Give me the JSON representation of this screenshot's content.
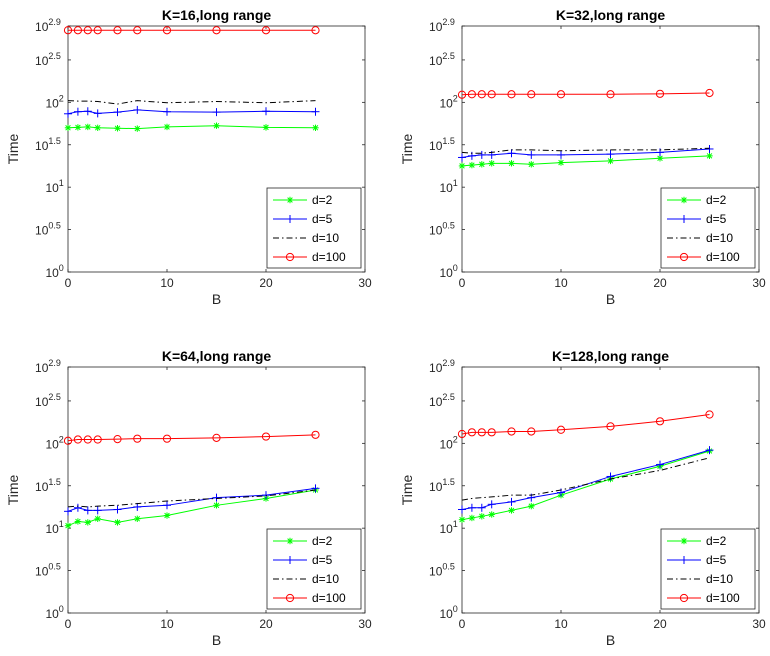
{
  "chart_data": [
    {
      "type": "line",
      "title": "K=16,long range",
      "xlabel": "B",
      "ylabel": "Time",
      "xlim": [
        0,
        30
      ],
      "xticks": [
        "0",
        "10",
        "20",
        "30"
      ],
      "ylog": true,
      "ylim": [
        1,
        794.33
      ],
      "yticks": [
        {
          "base": "10",
          "exp": "0",
          "value": 1
        },
        {
          "base": "10",
          "exp": "0.5",
          "value": 3.1623
        },
        {
          "base": "10",
          "exp": "1",
          "value": 10
        },
        {
          "base": "10",
          "exp": "1.5",
          "value": 31.623
        },
        {
          "base": "10",
          "exp": "2",
          "value": 100
        },
        {
          "base": "10",
          "exp": "2.5",
          "value": 316.23
        },
        {
          "base": "10",
          "exp": "2.9",
          "value": 794.33
        }
      ],
      "legend_position": "bottom-right",
      "x": [
        0,
        1,
        2,
        3,
        5,
        7,
        10,
        15,
        20,
        25
      ],
      "series": [
        {
          "name": "d=2",
          "color": "#00ff00",
          "marker": "asterisk",
          "dash": "solid",
          "y": [
            50.1,
            50.7,
            51.3,
            50.1,
            49.5,
            49.0,
            51.3,
            53.0,
            50.7,
            50.1
          ]
        },
        {
          "name": "d=5",
          "color": "#0000ff",
          "marker": "plus",
          "dash": "solid",
          "y": [
            73.3,
            77.6,
            78.5,
            74.1,
            76.7,
            81.4,
            77.6,
            76.7,
            78.5,
            77.6
          ]
        },
        {
          "name": "d=10",
          "color": "#000000",
          "marker": "none",
          "dash": "dashdot",
          "y": [
            104.7,
            103.5,
            103.5,
            102.3,
            95.5,
            104.7,
            98.9,
            102.3,
            98.9,
            104.7
          ]
        },
        {
          "name": "d=100",
          "color": "#ff0000",
          "marker": "circle",
          "dash": "solid",
          "y": [
            707.9,
            707.9,
            707.9,
            707.9,
            707.9,
            707.9,
            707.9,
            707.9,
            707.9,
            707.9
          ]
        }
      ]
    },
    {
      "type": "line",
      "title": "K=32,long range",
      "xlabel": "B",
      "ylabel": "Time",
      "xlim": [
        0,
        30
      ],
      "xticks": [
        "0",
        "10",
        "20",
        "30"
      ],
      "ylog": true,
      "ylim": [
        1,
        794.33
      ],
      "yticks": [
        {
          "base": "10",
          "exp": "0",
          "value": 1
        },
        {
          "base": "10",
          "exp": "0.5",
          "value": 3.1623
        },
        {
          "base": "10",
          "exp": "1",
          "value": 10
        },
        {
          "base": "10",
          "exp": "1.5",
          "value": 31.623
        },
        {
          "base": "10",
          "exp": "2",
          "value": 100
        },
        {
          "base": "10",
          "exp": "2.5",
          "value": 316.23
        },
        {
          "base": "10",
          "exp": "2.9",
          "value": 794.33
        }
      ],
      "legend_position": "bottom-right",
      "x": [
        0,
        1,
        2,
        3,
        5,
        7,
        10,
        15,
        20,
        25
      ],
      "series": [
        {
          "name": "d=2",
          "color": "#00ff00",
          "marker": "asterisk",
          "dash": "solid",
          "y": [
            17.8,
            18.2,
            18.6,
            19.1,
            19.1,
            18.6,
            19.5,
            20.4,
            21.9,
            23.4
          ]
        },
        {
          "name": "d=5",
          "color": "#0000ff",
          "marker": "plus",
          "dash": "solid",
          "y": [
            22.4,
            23.4,
            24.0,
            24.0,
            25.1,
            24.0,
            24.0,
            24.5,
            25.7,
            28.2
          ]
        },
        {
          "name": "d=10",
          "color": "#000000",
          "marker": "none",
          "dash": "dashdot",
          "y": [
            25.7,
            25.1,
            25.1,
            25.7,
            27.5,
            27.5,
            26.9,
            27.5,
            27.5,
            28.8
          ]
        },
        {
          "name": "d=100",
          "color": "#ff0000",
          "marker": "circle",
          "dash": "solid",
          "y": [
            123.0,
            124.5,
            124.5,
            124.5,
            124.5,
            124.5,
            124.5,
            124.5,
            126.0,
            129.0
          ]
        }
      ]
    },
    {
      "type": "line",
      "title": "K=64,long range",
      "xlabel": "B",
      "ylabel": "Time",
      "xlim": [
        0,
        30
      ],
      "xticks": [
        "0",
        "10",
        "20",
        "30"
      ],
      "ylog": true,
      "ylim": [
        1,
        794.33
      ],
      "yticks": [
        {
          "base": "10",
          "exp": "0",
          "value": 1
        },
        {
          "base": "10",
          "exp": "0.5",
          "value": 3.1623
        },
        {
          "base": "10",
          "exp": "1",
          "value": 10
        },
        {
          "base": "10",
          "exp": "1.5",
          "value": 31.623
        },
        {
          "base": "10",
          "exp": "2",
          "value": 100
        },
        {
          "base": "10",
          "exp": "2.5",
          "value": 316.23
        },
        {
          "base": "10",
          "exp": "2.9",
          "value": 794.33
        }
      ],
      "legend_position": "bottom-right",
      "x": [
        0,
        1,
        2,
        3,
        5,
        7,
        10,
        15,
        20,
        25
      ],
      "series": [
        {
          "name": "d=2",
          "color": "#00ff00",
          "marker": "asterisk",
          "dash": "solid",
          "y": [
            10.7,
            12.0,
            11.7,
            12.9,
            11.7,
            12.9,
            14.1,
            18.6,
            22.4,
            28.2
          ]
        },
        {
          "name": "d=5",
          "color": "#0000ff",
          "marker": "plus",
          "dash": "solid",
          "y": [
            15.8,
            17.4,
            16.2,
            16.2,
            16.6,
            17.8,
            18.6,
            22.9,
            24.5,
            29.5
          ]
        },
        {
          "name": "d=10",
          "color": "#000000",
          "marker": "none",
          "dash": "dashdot",
          "y": [
            17.8,
            18.2,
            17.8,
            18.2,
            18.6,
            19.5,
            20.9,
            22.4,
            24.0,
            28.2
          ]
        },
        {
          "name": "d=100",
          "color": "#ff0000",
          "marker": "circle",
          "dash": "solid",
          "y": [
            107.2,
            110.9,
            110.9,
            110.9,
            112.2,
            113.5,
            113.5,
            116.1,
            120.2,
            126.0
          ]
        }
      ]
    },
    {
      "type": "line",
      "title": "K=128,long range",
      "xlabel": "B",
      "ylabel": "Time",
      "xlim": [
        0,
        30
      ],
      "xticks": [
        "0",
        "10",
        "20",
        "30"
      ],
      "ylog": true,
      "ylim": [
        1,
        794.33
      ],
      "yticks": [
        {
          "base": "10",
          "exp": "0",
          "value": 1
        },
        {
          "base": "10",
          "exp": "0.5",
          "value": 3.1623
        },
        {
          "base": "10",
          "exp": "1",
          "value": 10
        },
        {
          "base": "10",
          "exp": "1.5",
          "value": 31.623
        },
        {
          "base": "10",
          "exp": "2",
          "value": 100
        },
        {
          "base": "10",
          "exp": "2.5",
          "value": 316.23
        },
        {
          "base": "10",
          "exp": "2.9",
          "value": 794.33
        }
      ],
      "legend_position": "bottom-right",
      "x": [
        0,
        1,
        2,
        3,
        5,
        7,
        10,
        15,
        20,
        25
      ],
      "series": [
        {
          "name": "d=2",
          "color": "#00ff00",
          "marker": "asterisk",
          "dash": "solid",
          "y": [
            12.6,
            13.2,
            13.8,
            14.5,
            16.2,
            18.2,
            24.5,
            38.0,
            53.7,
            81.3
          ]
        },
        {
          "name": "d=5",
          "color": "#0000ff",
          "marker": "plus",
          "dash": "solid",
          "y": [
            16.6,
            17.4,
            17.4,
            19.1,
            20.4,
            22.9,
            26.3,
            40.7,
            56.2,
            83.2
          ]
        },
        {
          "name": "d=10",
          "color": "#000000",
          "marker": "none",
          "dash": "dashdot",
          "y": [
            21.4,
            22.4,
            22.9,
            23.4,
            24.5,
            24.5,
            28.2,
            38.0,
            47.9,
            67.6
          ]
        },
        {
          "name": "d=100",
          "color": "#ff0000",
          "marker": "circle",
          "dash": "solid",
          "y": [
            129.0,
            134.9,
            134.9,
            134.9,
            138.0,
            138.0,
            144.5,
            158.5,
            181.9,
            218.8
          ]
        }
      ]
    }
  ]
}
